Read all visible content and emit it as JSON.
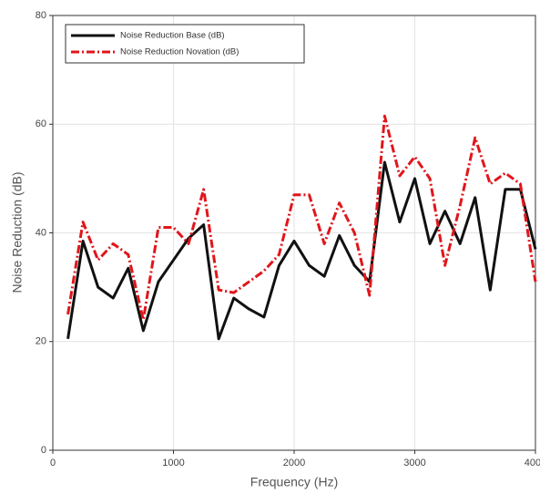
{
  "chart_data": {
    "type": "line",
    "x_label": "Frequency (Hz)",
    "y_label": "Noise Reduction (dB)",
    "x": [
      125,
      250,
      375,
      500,
      625,
      750,
      875,
      1000,
      1125,
      1250,
      1375,
      1500,
      1625,
      1750,
      1875,
      2000,
      2125,
      2250,
      2375,
      2500,
      2625,
      2750,
      2875,
      3000,
      3125,
      3250,
      3375,
      3500,
      3625,
      3750,
      3875,
      4000
    ],
    "series": [
      {
        "name": "Noise Reduction Base (dB)",
        "color": "#111111",
        "linestyle": "solid",
        "values": [
          20.5,
          38.5,
          30,
          28,
          33.5,
          22,
          31,
          35,
          39,
          41.5,
          20.5,
          28,
          26,
          24.5,
          34,
          38.5,
          34,
          32,
          39.5,
          34,
          31,
          53,
          42,
          50,
          38,
          44,
          38,
          46.5,
          29.5,
          48,
          48,
          37
        ]
      },
      {
        "name": "Noise Reduction Novation (dB)",
        "color": "#e0161b",
        "linestyle": "dashdot",
        "values": [
          25,
          42,
          35,
          38,
          36,
          24,
          41,
          41,
          38,
          48,
          29.5,
          29,
          31,
          33,
          36,
          47,
          47,
          38,
          45.5,
          40,
          28.5,
          61.5,
          50.5,
          54,
          50,
          34,
          45,
          57.5,
          49,
          51,
          49,
          31
        ]
      }
    ],
    "xlim": [
      0,
      4000
    ],
    "xticks": [
      0,
      1000,
      2000,
      3000,
      4000
    ],
    "ylim": [
      0,
      80
    ],
    "yticks": [
      0,
      20,
      40,
      60,
      80
    ],
    "grid": true,
    "legend_position": "upper left"
  }
}
